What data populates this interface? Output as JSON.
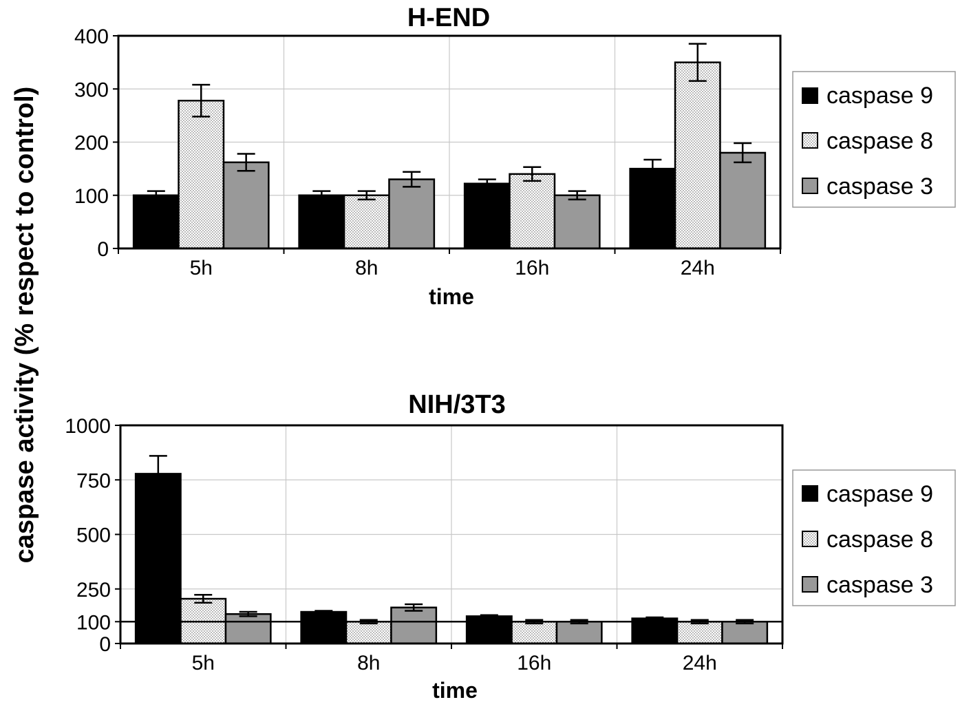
{
  "ylabel": "caspase activity (% respect to control)",
  "colors": {
    "caspase 9": "#000000",
    "caspase 8": "#f4f4f4",
    "caspase 3": "#999999"
  },
  "chart_data": [
    {
      "type": "bar",
      "title": "H-END",
      "xlabel": "time",
      "ylabel": "caspase activity (% respect to control)",
      "categories": [
        "5h",
        "8h",
        "16h",
        "24h"
      ],
      "ylim": [
        0,
        400
      ],
      "yticks": [
        "0",
        "100",
        "200",
        "300",
        "400"
      ],
      "grid": true,
      "legend": "right",
      "series": [
        {
          "name": "caspase 9",
          "values": [
            100,
            100,
            122,
            150
          ],
          "errors": [
            8,
            8,
            8,
            17
          ]
        },
        {
          "name": "caspase 8",
          "values": [
            278,
            100,
            140,
            350
          ],
          "errors": [
            30,
            8,
            13,
            35
          ]
        },
        {
          "name": "caspase 3",
          "values": [
            162,
            130,
            100,
            180
          ],
          "errors": [
            16,
            14,
            8,
            18
          ]
        }
      ]
    },
    {
      "type": "bar",
      "title": "NIH/3T3",
      "xlabel": "time",
      "ylabel": "caspase activity (% respect to control)",
      "categories": [
        "5h",
        "8h",
        "16h",
        "24h"
      ],
      "ylim": [
        0,
        1000
      ],
      "yticks": [
        "0",
        "100",
        "250",
        "500",
        "750",
        "1000"
      ],
      "reference_line": 100,
      "grid": true,
      "legend": "right",
      "series": [
        {
          "name": "caspase 9",
          "values": [
            778,
            145,
            125,
            115
          ],
          "errors": [
            82,
            5,
            5,
            5
          ]
        },
        {
          "name": "caspase 8",
          "values": [
            205,
            100,
            100,
            100
          ],
          "errors": [
            18,
            8,
            8,
            8
          ]
        },
        {
          "name": "caspase 3",
          "values": [
            135,
            165,
            100,
            100
          ],
          "errors": [
            10,
            15,
            8,
            8
          ]
        }
      ]
    }
  ]
}
